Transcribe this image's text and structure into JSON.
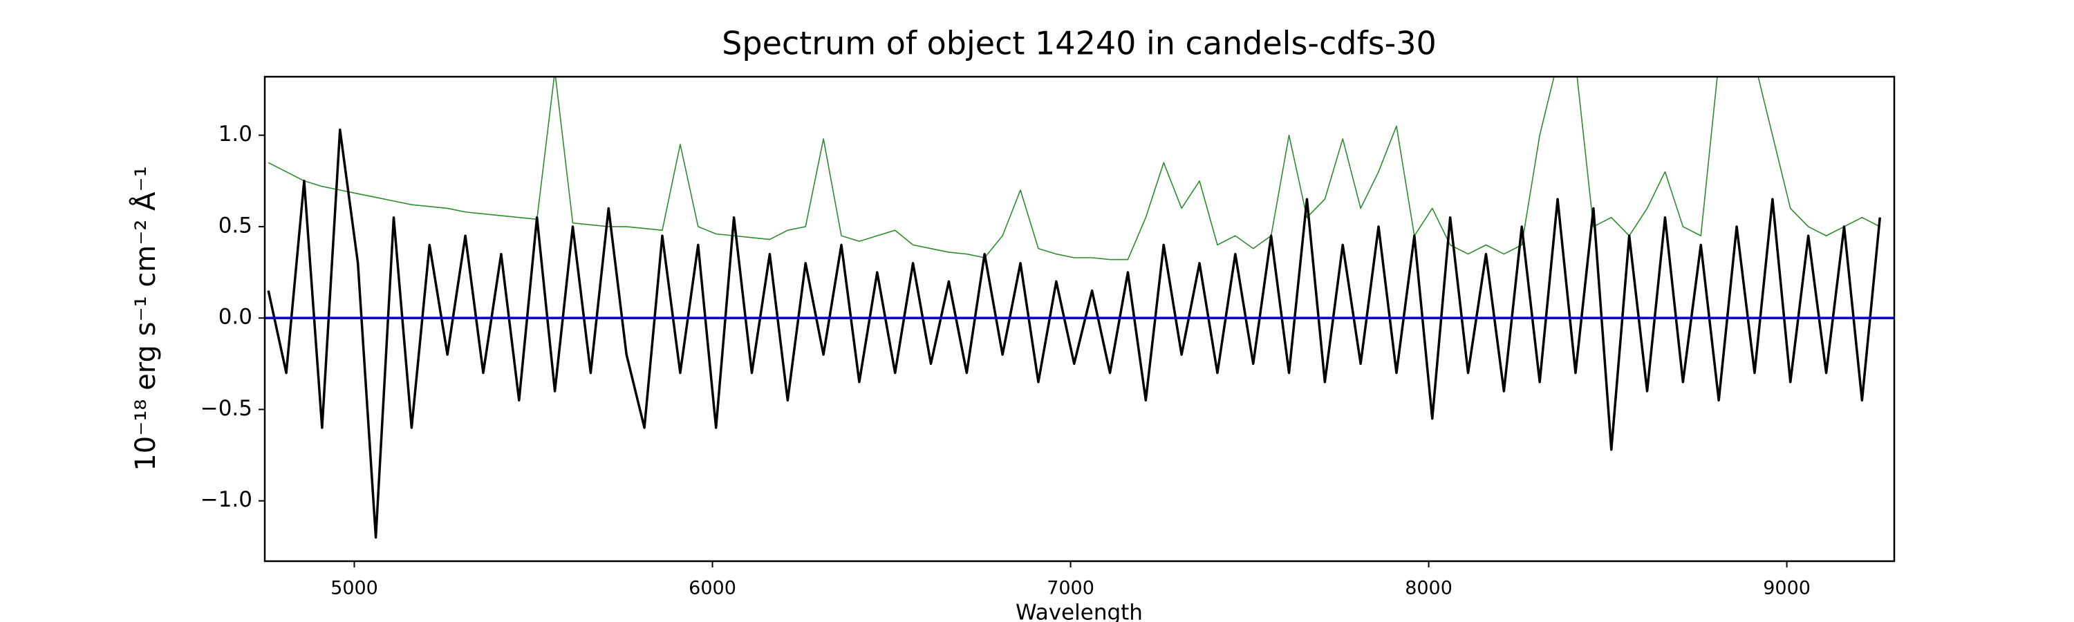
{
  "chart_data": {
    "type": "line",
    "title": "Spectrum of object 14240 in candels-cdfs-30",
    "x_label": "Wavelength",
    "y_label": "10⁻¹⁸ erg s⁻¹ cm⁻² Å⁻¹",
    "x": [
      4760,
      4810,
      4860,
      4910,
      4960,
      5010,
      5060,
      5110,
      5160,
      5210,
      5260,
      5310,
      5360,
      5410,
      5460,
      5510,
      5560,
      5610,
      5660,
      5710,
      5760,
      5810,
      5860,
      5910,
      5960,
      6010,
      6060,
      6110,
      6160,
      6210,
      6260,
      6310,
      6360,
      6410,
      6460,
      6510,
      6560,
      6610,
      6660,
      6710,
      6760,
      6810,
      6860,
      6910,
      6960,
      7010,
      7060,
      7110,
      7160,
      7210,
      7260,
      7310,
      7360,
      7410,
      7460,
      7510,
      7560,
      7610,
      7660,
      7710,
      7760,
      7810,
      7860,
      7910,
      7960,
      8010,
      8060,
      8110,
      8160,
      8210,
      8260,
      8310,
      8360,
      8410,
      8460,
      8510,
      8560,
      8610,
      8660,
      8710,
      8760,
      8810,
      8860,
      8910,
      8960,
      9010,
      9060,
      9110,
      9160,
      9210,
      9260
    ],
    "series": [
      {
        "color": "#2e8b2e",
        "width": 1.6,
        "values": [
          0.85,
          0.8,
          0.75,
          0.72,
          0.7,
          0.68,
          0.66,
          0.64,
          0.62,
          0.61,
          0.6,
          0.58,
          0.57,
          0.56,
          0.55,
          0.54,
          1.35,
          0.52,
          0.51,
          0.5,
          0.5,
          0.49,
          0.48,
          0.95,
          0.5,
          0.46,
          0.45,
          0.44,
          0.43,
          0.48,
          0.5,
          0.98,
          0.45,
          0.42,
          0.45,
          0.48,
          0.4,
          0.38,
          0.36,
          0.35,
          0.33,
          0.45,
          0.7,
          0.38,
          0.35,
          0.33,
          0.33,
          0.32,
          0.32,
          0.55,
          0.85,
          0.6,
          0.75,
          0.4,
          0.45,
          0.38,
          0.45,
          1.0,
          0.55,
          0.65,
          0.98,
          0.6,
          0.8,
          1.05,
          0.45,
          0.6,
          0.4,
          0.35,
          0.4,
          0.35,
          0.4,
          1.0,
          1.4,
          1.4,
          0.5,
          0.55,
          0.45,
          0.6,
          0.8,
          0.5,
          0.45,
          1.4,
          1.4,
          1.4,
          1.0,
          0.6,
          0.5,
          0.45,
          0.5,
          0.55,
          0.5
        ]
      },
      {
        "color": "#000000",
        "width": 3.5,
        "values": [
          0.15,
          -0.3,
          0.75,
          -0.6,
          1.03,
          0.3,
          -1.2,
          0.55,
          -0.6,
          0.4,
          -0.2,
          0.45,
          -0.3,
          0.35,
          -0.45,
          0.55,
          -0.4,
          0.5,
          -0.3,
          0.6,
          -0.2,
          -0.6,
          0.45,
          -0.3,
          0.4,
          -0.6,
          0.55,
          -0.3,
          0.35,
          -0.45,
          0.3,
          -0.2,
          0.4,
          -0.35,
          0.25,
          -0.3,
          0.3,
          -0.25,
          0.2,
          -0.3,
          0.35,
          -0.2,
          0.3,
          -0.35,
          0.2,
          -0.25,
          0.15,
          -0.3,
          0.25,
          -0.45,
          0.4,
          -0.2,
          0.3,
          -0.3,
          0.35,
          -0.25,
          0.45,
          -0.3,
          0.65,
          -0.35,
          0.4,
          -0.25,
          0.5,
          -0.3,
          0.45,
          -0.55,
          0.55,
          -0.3,
          0.35,
          -0.4,
          0.5,
          -0.35,
          0.65,
          -0.3,
          0.6,
          -0.72,
          0.45,
          -0.4,
          0.55,
          -0.35,
          0.4,
          -0.45,
          0.5,
          -0.3,
          0.65,
          -0.35,
          0.45,
          -0.3,
          0.5,
          -0.45,
          0.55
        ]
      },
      {
        "color": "#0000cc",
        "width": 3.5,
        "x": [
          4750,
          9300
        ],
        "values": [
          0,
          0
        ]
      }
    ],
    "xlim": [
      4750,
      9300
    ],
    "ylim": [
      -1.33,
      1.32
    ],
    "xticks": [
      5000,
      6000,
      7000,
      8000,
      9000
    ],
    "yticks": [
      {
        "value": -1,
        "label": "−1.0"
      },
      {
        "value": -0.5,
        "label": "−0.5"
      },
      {
        "value": 0,
        "label": "0.0"
      },
      {
        "value": 0.5,
        "label": "0.5"
      },
      {
        "value": 1,
        "label": "1.0"
      }
    ]
  }
}
